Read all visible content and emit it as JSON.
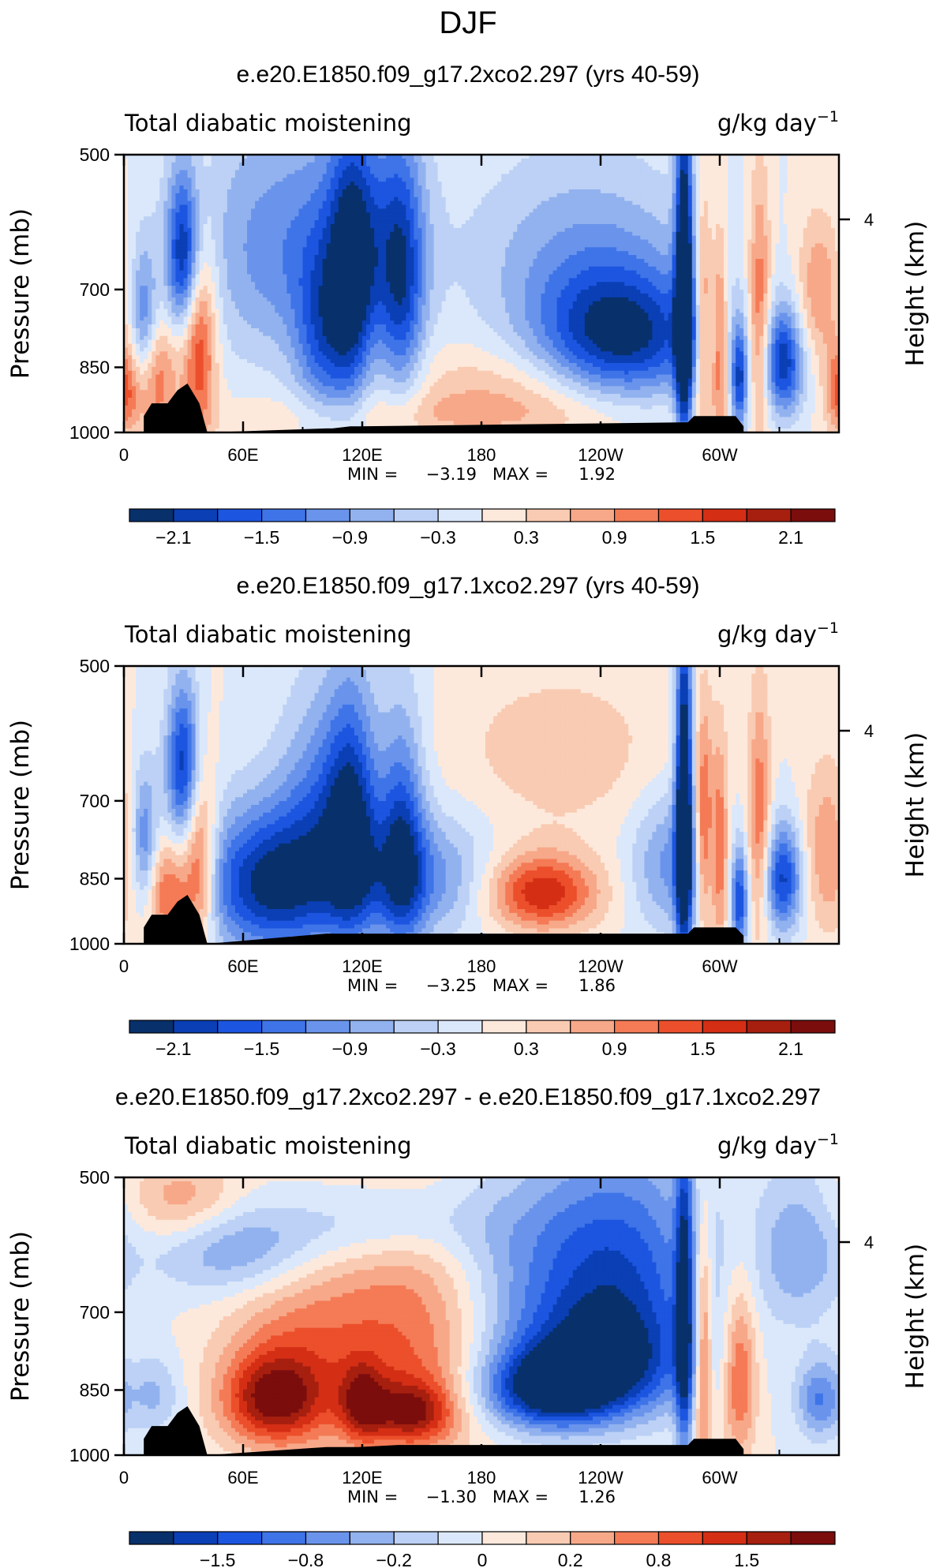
{
  "page_title": "DJF",
  "palette": {
    "cold": [
      "#08306b",
      "#0a3fb5",
      "#1c55e0",
      "#3e74e8",
      "#6a94ec",
      "#92b2ef",
      "#bcd1f5",
      "#dbe8fb"
    ],
    "warm": [
      "#fde9dc",
      "#f9cbb2",
      "#f7a889",
      "#f47b56",
      "#ec4f2b",
      "#d42e15",
      "#a61f0f",
      "#7b0d0d"
    ],
    "terrain": "#000000"
  },
  "chart_data": [
    {
      "type": "contour",
      "title": "e.e20.E1850.f09_g17.2xco2.297 (yrs 40-59)",
      "variable_label": "Total diabatic moistening",
      "units_label": "g/kg day",
      "units_exponent": "−1",
      "ylabel": "Pressure (mb)",
      "ylabel_right": "Height (km)",
      "yticks": [
        "500",
        "700",
        "850",
        "1000"
      ],
      "yticks_right": [
        "4"
      ],
      "xticks": [
        "0",
        "60E",
        "120E",
        "180",
        "120W",
        "60W"
      ],
      "ylim": [
        1000,
        500
      ],
      "stats": {
        "min_label": "MIN =",
        "min": "−3.19",
        "max_label": "MAX =",
        "max": "1.92"
      },
      "colorbar_labels": [
        "−2.1",
        "−1.5",
        "−0.9",
        "−0.3",
        "0.3",
        "0.9",
        "1.5",
        "2.1"
      ],
      "features": [
        {
          "lon": 30,
          "p": 640,
          "v": -2.0,
          "slon": 6,
          "sp": 90
        },
        {
          "lon": 38,
          "p": 800,
          "v": 1.6,
          "slon": 6,
          "sp": 140
        },
        {
          "lon": 15,
          "p": 870,
          "v": 1.3,
          "slon": 8,
          "sp": 90
        },
        {
          "lon": 10,
          "p": 770,
          "v": -1.4,
          "slon": 5,
          "sp": 100
        },
        {
          "lon": 80,
          "p": 630,
          "v": -1.1,
          "slon": 30,
          "sp": 140
        },
        {
          "lon": 115,
          "p": 700,
          "v": -1.6,
          "slon": 8,
          "sp": 170
        },
        {
          "lon": 100,
          "p": 800,
          "v": -1.2,
          "slon": 10,
          "sp": 120
        },
        {
          "lon": 140,
          "p": 700,
          "v": -1.5,
          "slon": 8,
          "sp": 160
        },
        {
          "lon": 125,
          "p": 620,
          "v": -0.9,
          "slon": 18,
          "sp": 120
        },
        {
          "lon": 195,
          "p": 900,
          "v": 0.6,
          "slon": 40,
          "sp": 70
        },
        {
          "lon": 250,
          "p": 790,
          "v": -2.2,
          "slon": 30,
          "sp": 90
        },
        {
          "lon": 230,
          "p": 640,
          "v": -0.8,
          "slon": 40,
          "sp": 110
        },
        {
          "lon": 282,
          "p": 720,
          "v": -3.0,
          "slon": 3,
          "sp": 220
        },
        {
          "lon": 292,
          "p": 760,
          "v": 1.4,
          "slon": 3,
          "sp": 140
        },
        {
          "lon": 300,
          "p": 800,
          "v": 1.5,
          "slon": 3,
          "sp": 140
        },
        {
          "lon": 310,
          "p": 880,
          "v": -1.8,
          "slon": 3,
          "sp": 80
        },
        {
          "lon": 320,
          "p": 750,
          "v": 1.3,
          "slon": 4,
          "sp": 160
        },
        {
          "lon": 332,
          "p": 840,
          "v": -2.0,
          "slon": 7,
          "sp": 80
        },
        {
          "lon": 350,
          "p": 700,
          "v": 0.9,
          "slon": 8,
          "sp": 90
        },
        {
          "lon": 360,
          "p": 900,
          "v": 1.2,
          "slon": 5,
          "sp": 70
        },
        {
          "lon": 150,
          "p": 960,
          "v": 0.4,
          "slon": 70,
          "sp": 40
        }
      ],
      "terrain": [
        [
          10,
          960
        ],
        [
          14,
          930
        ],
        [
          22,
          930
        ],
        [
          27,
          900
        ],
        [
          32,
          885
        ],
        [
          38,
          930
        ],
        [
          42,
          1000
        ],
        [
          102,
          990
        ],
        [
          105,
          990
        ],
        [
          114,
          985
        ],
        [
          118,
          985
        ],
        [
          284,
          975
        ],
        [
          287,
          960
        ],
        [
          290,
          960
        ],
        [
          308,
          960
        ],
        [
          312,
          985
        ]
      ]
    },
    {
      "type": "contour",
      "title": "e.e20.E1850.f09_g17.1xco2.297 (yrs 40-59)",
      "variable_label": "Total diabatic moistening",
      "units_label": "g/kg day",
      "units_exponent": "−1",
      "ylabel": "Pressure (mb)",
      "ylabel_right": "Height (km)",
      "yticks": [
        "500",
        "700",
        "850",
        "1000"
      ],
      "yticks_right": [
        "4"
      ],
      "xticks": [
        "0",
        "60E",
        "120E",
        "180",
        "120W",
        "60W"
      ],
      "ylim": [
        1000,
        500
      ],
      "stats": {
        "min_label": "MIN =",
        "min": "−3.25",
        "max_label": "MAX =",
        "max": "1.86"
      },
      "colorbar_labels": [
        "−2.1",
        "−1.5",
        "−0.9",
        "−0.3",
        "0.3",
        "0.9",
        "1.5",
        "2.1"
      ],
      "features": [
        {
          "lon": 30,
          "p": 640,
          "v": -2.0,
          "slon": 6,
          "sp": 90
        },
        {
          "lon": 38,
          "p": 820,
          "v": 1.6,
          "slon": 6,
          "sp": 130
        },
        {
          "lon": 22,
          "p": 880,
          "v": 1.4,
          "slon": 8,
          "sp": 80
        },
        {
          "lon": 10,
          "p": 780,
          "v": -1.4,
          "slon": 5,
          "sp": 100
        },
        {
          "lon": 75,
          "p": 860,
          "v": -2.3,
          "slon": 25,
          "sp": 110
        },
        {
          "lon": 115,
          "p": 750,
          "v": -1.8,
          "slon": 9,
          "sp": 160
        },
        {
          "lon": 140,
          "p": 780,
          "v": -1.7,
          "slon": 8,
          "sp": 160
        },
        {
          "lon": 100,
          "p": 700,
          "v": -1.0,
          "slon": 15,
          "sp": 140
        },
        {
          "lon": 150,
          "p": 850,
          "v": -1.1,
          "slon": 25,
          "sp": 90
        },
        {
          "lon": 210,
          "p": 880,
          "v": 1.8,
          "slon": 20,
          "sp": 60
        },
        {
          "lon": 220,
          "p": 620,
          "v": 0.5,
          "slon": 40,
          "sp": 90
        },
        {
          "lon": 275,
          "p": 820,
          "v": -1.0,
          "slon": 14,
          "sp": 100
        },
        {
          "lon": 282,
          "p": 720,
          "v": -3.1,
          "slon": 3,
          "sp": 220
        },
        {
          "lon": 292,
          "p": 760,
          "v": 1.4,
          "slon": 3,
          "sp": 140
        },
        {
          "lon": 300,
          "p": 800,
          "v": 1.3,
          "slon": 3,
          "sp": 140
        },
        {
          "lon": 310,
          "p": 900,
          "v": -1.8,
          "slon": 3,
          "sp": 80
        },
        {
          "lon": 320,
          "p": 750,
          "v": 1.2,
          "slon": 4,
          "sp": 160
        },
        {
          "lon": 332,
          "p": 850,
          "v": -1.9,
          "slon": 7,
          "sp": 80
        },
        {
          "lon": 355,
          "p": 800,
          "v": 0.9,
          "slon": 10,
          "sp": 120
        }
      ],
      "terrain": [
        [
          10,
          960
        ],
        [
          14,
          930
        ],
        [
          22,
          930
        ],
        [
          27,
          900
        ],
        [
          32,
          885
        ],
        [
          38,
          930
        ],
        [
          42,
          1000
        ],
        [
          102,
          975
        ],
        [
          105,
          975
        ],
        [
          114,
          975
        ],
        [
          118,
          975
        ],
        [
          138,
          975
        ],
        [
          182,
          975
        ],
        [
          284,
          975
        ],
        [
          287,
          960
        ],
        [
          290,
          960
        ],
        [
          308,
          960
        ],
        [
          312,
          980
        ]
      ]
    },
    {
      "type": "contour",
      "title": "e.e20.E1850.f09_g17.2xco2.297 - e.e20.E1850.f09_g17.1xco2.297",
      "variable_label": "Total diabatic moistening",
      "units_label": "g/kg day",
      "units_exponent": "−1",
      "ylabel": "Pressure (mb)",
      "ylabel_right": "Height (km)",
      "yticks": [
        "500",
        "700",
        "850",
        "1000"
      ],
      "yticks_right": [
        "4"
      ],
      "xticks": [
        "0",
        "60E",
        "120E",
        "180",
        "120W",
        "60W"
      ],
      "ylim": [
        1000,
        500
      ],
      "stats": {
        "min_label": "MIN =",
        "min": "−1.30",
        "max_label": "MAX =",
        "max": "1.26"
      },
      "colorbar_labels": [
        "−1.5",
        "−0.8",
        "−0.2",
        "0",
        "0.2",
        "0.8",
        "1.5"
      ],
      "features": [
        {
          "lon": 75,
          "p": 870,
          "v": 1.1,
          "slon": 18,
          "sp": 70
        },
        {
          "lon": 95,
          "p": 760,
          "v": 0.6,
          "slon": 30,
          "sp": 150
        },
        {
          "lon": 150,
          "p": 760,
          "v": 0.6,
          "slon": 25,
          "sp": 170
        },
        {
          "lon": 145,
          "p": 900,
          "v": 0.9,
          "slon": 15,
          "sp": 50
        },
        {
          "lon": 120,
          "p": 880,
          "v": 0.8,
          "slon": 8,
          "sp": 60
        },
        {
          "lon": 30,
          "p": 530,
          "v": 0.5,
          "slon": 20,
          "sp": 40
        },
        {
          "lon": 60,
          "p": 600,
          "v": -0.6,
          "slon": 30,
          "sp": 50
        },
        {
          "lon": 130,
          "p": 560,
          "v": -0.4,
          "slon": 40,
          "sp": 40
        },
        {
          "lon": 215,
          "p": 850,
          "v": -1.3,
          "slon": 25,
          "sp": 60
        },
        {
          "lon": 245,
          "p": 790,
          "v": -1.0,
          "slon": 30,
          "sp": 80
        },
        {
          "lon": 250,
          "p": 620,
          "v": -0.9,
          "slon": 30,
          "sp": 120
        },
        {
          "lon": 200,
          "p": 650,
          "v": -0.4,
          "slon": 30,
          "sp": 120
        },
        {
          "lon": 282,
          "p": 720,
          "v": -1.1,
          "slon": 3,
          "sp": 220
        },
        {
          "lon": 292,
          "p": 780,
          "v": 0.9,
          "slon": 3,
          "sp": 160
        },
        {
          "lon": 310,
          "p": 820,
          "v": 0.8,
          "slon": 6,
          "sp": 120
        },
        {
          "lon": 340,
          "p": 600,
          "v": -0.5,
          "slon": 15,
          "sp": 80
        },
        {
          "lon": 350,
          "p": 870,
          "v": -0.7,
          "slon": 8,
          "sp": 60
        },
        {
          "lon": 15,
          "p": 860,
          "v": -0.4,
          "slon": 10,
          "sp": 60
        }
      ],
      "terrain": [
        [
          10,
          960
        ],
        [
          14,
          930
        ],
        [
          22,
          930
        ],
        [
          27,
          900
        ],
        [
          32,
          885
        ],
        [
          38,
          930
        ],
        [
          42,
          1000
        ],
        [
          102,
          980
        ],
        [
          105,
          980
        ],
        [
          114,
          980
        ],
        [
          118,
          980
        ],
        [
          138,
          975
        ],
        [
          182,
          975
        ],
        [
          284,
          975
        ],
        [
          287,
          960
        ],
        [
          290,
          960
        ],
        [
          308,
          960
        ],
        [
          312,
          985
        ]
      ]
    }
  ]
}
